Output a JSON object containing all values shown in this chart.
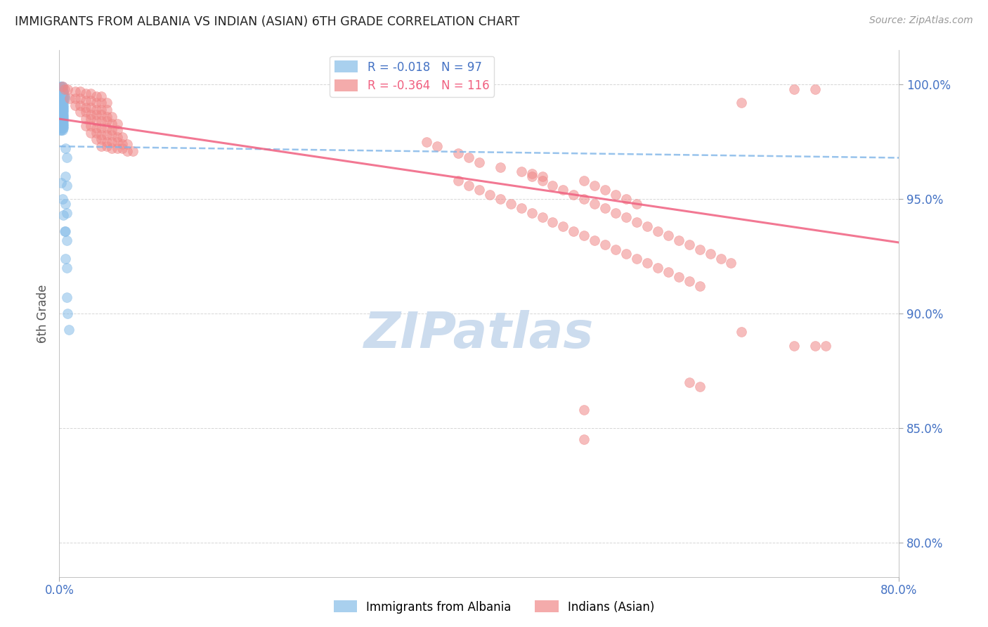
{
  "title": "IMMIGRANTS FROM ALBANIA VS INDIAN (ASIAN) 6TH GRADE CORRELATION CHART",
  "source": "Source: ZipAtlas.com",
  "ylabel": "6th Grade",
  "ytick_labels": [
    "100.0%",
    "95.0%",
    "90.0%",
    "85.0%",
    "80.0%"
  ],
  "ytick_values": [
    1.0,
    0.95,
    0.9,
    0.85,
    0.8
  ],
  "xlim": [
    0.0,
    0.8
  ],
  "ylim": [
    0.785,
    1.015
  ],
  "albania_scatter": [
    [
      0.001,
      0.999
    ],
    [
      0.002,
      0.999
    ],
    [
      0.003,
      0.999
    ],
    [
      0.001,
      0.998
    ],
    [
      0.002,
      0.998
    ],
    [
      0.003,
      0.998
    ],
    [
      0.001,
      0.997
    ],
    [
      0.002,
      0.997
    ],
    [
      0.003,
      0.997
    ],
    [
      0.004,
      0.997
    ],
    [
      0.001,
      0.996
    ],
    [
      0.002,
      0.996
    ],
    [
      0.003,
      0.996
    ],
    [
      0.004,
      0.996
    ],
    [
      0.001,
      0.995
    ],
    [
      0.002,
      0.995
    ],
    [
      0.003,
      0.995
    ],
    [
      0.004,
      0.995
    ],
    [
      0.005,
      0.995
    ],
    [
      0.001,
      0.994
    ],
    [
      0.002,
      0.994
    ],
    [
      0.003,
      0.994
    ],
    [
      0.004,
      0.994
    ],
    [
      0.005,
      0.994
    ],
    [
      0.001,
      0.993
    ],
    [
      0.002,
      0.993
    ],
    [
      0.003,
      0.993
    ],
    [
      0.004,
      0.993
    ],
    [
      0.001,
      0.992
    ],
    [
      0.002,
      0.992
    ],
    [
      0.003,
      0.992
    ],
    [
      0.004,
      0.992
    ],
    [
      0.001,
      0.991
    ],
    [
      0.002,
      0.991
    ],
    [
      0.003,
      0.991
    ],
    [
      0.004,
      0.991
    ],
    [
      0.001,
      0.99
    ],
    [
      0.002,
      0.99
    ],
    [
      0.003,
      0.99
    ],
    [
      0.004,
      0.99
    ],
    [
      0.001,
      0.989
    ],
    [
      0.002,
      0.989
    ],
    [
      0.003,
      0.989
    ],
    [
      0.004,
      0.989
    ],
    [
      0.001,
      0.988
    ],
    [
      0.002,
      0.988
    ],
    [
      0.003,
      0.988
    ],
    [
      0.004,
      0.988
    ],
    [
      0.001,
      0.987
    ],
    [
      0.002,
      0.987
    ],
    [
      0.003,
      0.987
    ],
    [
      0.004,
      0.987
    ],
    [
      0.001,
      0.986
    ],
    [
      0.002,
      0.986
    ],
    [
      0.003,
      0.986
    ],
    [
      0.004,
      0.986
    ],
    [
      0.001,
      0.985
    ],
    [
      0.002,
      0.985
    ],
    [
      0.003,
      0.985
    ],
    [
      0.004,
      0.985
    ],
    [
      0.001,
      0.984
    ],
    [
      0.002,
      0.984
    ],
    [
      0.003,
      0.984
    ],
    [
      0.004,
      0.984
    ],
    [
      0.001,
      0.983
    ],
    [
      0.002,
      0.983
    ],
    [
      0.003,
      0.983
    ],
    [
      0.004,
      0.983
    ],
    [
      0.001,
      0.982
    ],
    [
      0.002,
      0.982
    ],
    [
      0.003,
      0.982
    ],
    [
      0.004,
      0.982
    ],
    [
      0.001,
      0.981
    ],
    [
      0.002,
      0.981
    ],
    [
      0.003,
      0.981
    ],
    [
      0.004,
      0.981
    ],
    [
      0.001,
      0.98
    ],
    [
      0.002,
      0.98
    ],
    [
      0.003,
      0.98
    ],
    [
      0.006,
      0.972
    ],
    [
      0.007,
      0.968
    ],
    [
      0.006,
      0.96
    ],
    [
      0.007,
      0.956
    ],
    [
      0.006,
      0.948
    ],
    [
      0.007,
      0.944
    ],
    [
      0.006,
      0.936
    ],
    [
      0.007,
      0.932
    ],
    [
      0.006,
      0.924
    ],
    [
      0.007,
      0.92
    ],
    [
      0.002,
      0.957
    ],
    [
      0.003,
      0.95
    ],
    [
      0.004,
      0.943
    ],
    [
      0.005,
      0.936
    ],
    [
      0.007,
      0.907
    ],
    [
      0.008,
      0.9
    ],
    [
      0.009,
      0.893
    ]
  ],
  "indian_scatter": [
    [
      0.003,
      0.999
    ],
    [
      0.005,
      0.998
    ],
    [
      0.008,
      0.998
    ],
    [
      0.015,
      0.997
    ],
    [
      0.02,
      0.997
    ],
    [
      0.025,
      0.996
    ],
    [
      0.03,
      0.996
    ],
    [
      0.035,
      0.995
    ],
    [
      0.04,
      0.995
    ],
    [
      0.01,
      0.994
    ],
    [
      0.015,
      0.994
    ],
    [
      0.02,
      0.994
    ],
    [
      0.025,
      0.993
    ],
    [
      0.03,
      0.993
    ],
    [
      0.035,
      0.992
    ],
    [
      0.04,
      0.992
    ],
    [
      0.045,
      0.992
    ],
    [
      0.015,
      0.991
    ],
    [
      0.02,
      0.991
    ],
    [
      0.025,
      0.99
    ],
    [
      0.03,
      0.99
    ],
    [
      0.035,
      0.989
    ],
    [
      0.04,
      0.989
    ],
    [
      0.045,
      0.989
    ],
    [
      0.02,
      0.988
    ],
    [
      0.025,
      0.988
    ],
    [
      0.03,
      0.987
    ],
    [
      0.035,
      0.987
    ],
    [
      0.04,
      0.987
    ],
    [
      0.045,
      0.986
    ],
    [
      0.05,
      0.986
    ],
    [
      0.025,
      0.985
    ],
    [
      0.03,
      0.985
    ],
    [
      0.035,
      0.984
    ],
    [
      0.04,
      0.984
    ],
    [
      0.045,
      0.984
    ],
    [
      0.05,
      0.983
    ],
    [
      0.055,
      0.983
    ],
    [
      0.025,
      0.982
    ],
    [
      0.03,
      0.982
    ],
    [
      0.035,
      0.981
    ],
    [
      0.04,
      0.981
    ],
    [
      0.045,
      0.981
    ],
    [
      0.05,
      0.98
    ],
    [
      0.055,
      0.98
    ],
    [
      0.03,
      0.979
    ],
    [
      0.035,
      0.979
    ],
    [
      0.04,
      0.978
    ],
    [
      0.045,
      0.978
    ],
    [
      0.05,
      0.978
    ],
    [
      0.055,
      0.977
    ],
    [
      0.06,
      0.977
    ],
    [
      0.035,
      0.976
    ],
    [
      0.04,
      0.976
    ],
    [
      0.045,
      0.975
    ],
    [
      0.05,
      0.975
    ],
    [
      0.055,
      0.975
    ],
    [
      0.06,
      0.974
    ],
    [
      0.065,
      0.974
    ],
    [
      0.04,
      0.973
    ],
    [
      0.045,
      0.973
    ],
    [
      0.05,
      0.972
    ],
    [
      0.055,
      0.972
    ],
    [
      0.06,
      0.972
    ],
    [
      0.065,
      0.971
    ],
    [
      0.07,
      0.971
    ],
    [
      0.35,
      0.975
    ],
    [
      0.36,
      0.973
    ],
    [
      0.38,
      0.97
    ],
    [
      0.39,
      0.968
    ],
    [
      0.4,
      0.966
    ],
    [
      0.42,
      0.964
    ],
    [
      0.44,
      0.962
    ],
    [
      0.45,
      0.961
    ],
    [
      0.46,
      0.96
    ],
    [
      0.38,
      0.958
    ],
    [
      0.39,
      0.956
    ],
    [
      0.4,
      0.954
    ],
    [
      0.41,
      0.952
    ],
    [
      0.42,
      0.95
    ],
    [
      0.43,
      0.948
    ],
    [
      0.44,
      0.946
    ],
    [
      0.45,
      0.944
    ],
    [
      0.46,
      0.942
    ],
    [
      0.47,
      0.94
    ],
    [
      0.48,
      0.938
    ],
    [
      0.49,
      0.936
    ],
    [
      0.5,
      0.934
    ],
    [
      0.51,
      0.932
    ],
    [
      0.52,
      0.93
    ],
    [
      0.53,
      0.928
    ],
    [
      0.54,
      0.926
    ],
    [
      0.55,
      0.924
    ],
    [
      0.56,
      0.922
    ],
    [
      0.57,
      0.92
    ],
    [
      0.58,
      0.918
    ],
    [
      0.59,
      0.916
    ],
    [
      0.6,
      0.914
    ],
    [
      0.61,
      0.912
    ],
    [
      0.45,
      0.96
    ],
    [
      0.46,
      0.958
    ],
    [
      0.47,
      0.956
    ],
    [
      0.48,
      0.954
    ],
    [
      0.49,
      0.952
    ],
    [
      0.5,
      0.95
    ],
    [
      0.51,
      0.948
    ],
    [
      0.52,
      0.946
    ],
    [
      0.53,
      0.944
    ],
    [
      0.54,
      0.942
    ],
    [
      0.55,
      0.94
    ],
    [
      0.56,
      0.938
    ],
    [
      0.57,
      0.936
    ],
    [
      0.58,
      0.934
    ],
    [
      0.59,
      0.932
    ],
    [
      0.6,
      0.93
    ],
    [
      0.61,
      0.928
    ],
    [
      0.62,
      0.926
    ],
    [
      0.63,
      0.924
    ],
    [
      0.64,
      0.922
    ],
    [
      0.5,
      0.958
    ],
    [
      0.51,
      0.956
    ],
    [
      0.52,
      0.954
    ],
    [
      0.53,
      0.952
    ],
    [
      0.54,
      0.95
    ],
    [
      0.55,
      0.948
    ],
    [
      0.65,
      0.992
    ],
    [
      0.7,
      0.998
    ],
    [
      0.72,
      0.998
    ],
    [
      0.65,
      0.892
    ],
    [
      0.7,
      0.886
    ],
    [
      0.72,
      0.886
    ],
    [
      0.73,
      0.886
    ],
    [
      0.5,
      0.858
    ],
    [
      0.5,
      0.845
    ],
    [
      0.6,
      0.87
    ],
    [
      0.61,
      0.868
    ]
  ],
  "albania_trendline": {
    "x": [
      0.0,
      0.8
    ],
    "y": [
      0.973,
      0.968
    ]
  },
  "indian_trendline": {
    "x": [
      0.0,
      0.8
    ],
    "y": [
      0.985,
      0.931
    ]
  },
  "scatter_size": 100,
  "albania_color": "#85bce8",
  "indian_color": "#f08888",
  "albania_alpha": 0.55,
  "indian_alpha": 0.55,
  "trendline_albania_color": "#7eb5e8",
  "trendline_indian_color": "#f06080",
  "watermark_text": "ZIPatlas",
  "watermark_color": "#ccdcee",
  "background_color": "#ffffff",
  "grid_color": "#cccccc",
  "title_color": "#222222",
  "axis_label_color": "#555555",
  "right_tick_color": "#4472c4",
  "bottom_tick_color": "#4472c4"
}
